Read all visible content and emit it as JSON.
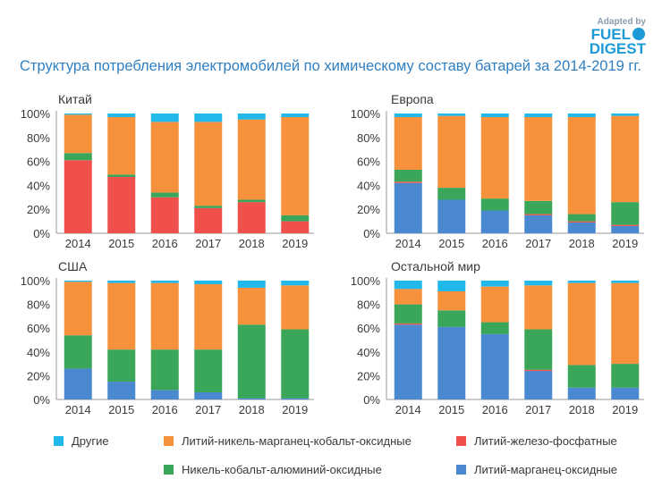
{
  "logo": {
    "line1": "Adapted by",
    "line2": "FUEL",
    "line3": "DIGEST"
  },
  "title": "Структура потребления электромобилей по химическому составу батарей за 2014-2019 гг.",
  "colors": {
    "other": "#22b8ea",
    "nmc": "#f7913c",
    "lfp": "#f0504c",
    "nca": "#3aa65a",
    "lmo": "#4a89cf"
  },
  "legend": [
    {
      "key": "other",
      "label": "Другие"
    },
    {
      "key": "nmc",
      "label": "Литий-никель-марганец-кобальт-оксидные"
    },
    {
      "key": "lfp",
      "label": "Литий-железо-фосфатные"
    },
    {
      "key": "nca",
      "label": "Никель-кобальт-алюминий-оксидные"
    },
    {
      "key": "lmo",
      "label": "Литий-марганец-оксидные"
    }
  ],
  "chart_data": [
    {
      "type": "bar",
      "stacked": true,
      "title": "Китай",
      "categories": [
        "2014",
        "2015",
        "2016",
        "2017",
        "2018",
        "2019"
      ],
      "ylim": [
        0,
        100
      ],
      "yticks": [
        "0%",
        "20%",
        "40%",
        "60%",
        "80%",
        "100%"
      ],
      "series": [
        {
          "key": "lmo",
          "name": "Литий-марганец-оксидные",
          "values": [
            0,
            0,
            0,
            0,
            0,
            0
          ]
        },
        {
          "key": "lfp",
          "name": "Литий-железо-фосфатные",
          "values": [
            61,
            47,
            30,
            21,
            26,
            10
          ]
        },
        {
          "key": "nca",
          "name": "Никель-кобальт-алюминий-оксидные",
          "values": [
            6,
            2,
            4,
            2,
            2,
            5
          ]
        },
        {
          "key": "nmc",
          "name": "Литий-никель-марганец-кобальт-оксидные",
          "values": [
            32,
            48,
            59,
            70,
            67,
            82
          ]
        },
        {
          "key": "other",
          "name": "Другие",
          "values": [
            1,
            3,
            7,
            7,
            5,
            3
          ]
        }
      ]
    },
    {
      "type": "bar",
      "stacked": true,
      "title": "Европа",
      "categories": [
        "2014",
        "2015",
        "2016",
        "2017",
        "2018",
        "2019"
      ],
      "ylim": [
        0,
        100
      ],
      "yticks": [
        "0%",
        "20%",
        "40%",
        "60%",
        "80%",
        "100%"
      ],
      "series": [
        {
          "key": "lmo",
          "name": "Литий-марганец-оксидные",
          "values": [
            42,
            28,
            19,
            15,
            9,
            6
          ]
        },
        {
          "key": "lfp",
          "name": "Литий-железо-фосфатные",
          "values": [
            1,
            0,
            0,
            1,
            1,
            1
          ]
        },
        {
          "key": "nca",
          "name": "Никель-кобальт-алюминий-оксидные",
          "values": [
            10,
            10,
            10,
            11,
            6,
            19
          ]
        },
        {
          "key": "nmc",
          "name": "Литий-никель-марганец-кобальт-оксидные",
          "values": [
            44,
            60,
            68,
            70,
            81,
            72
          ]
        },
        {
          "key": "other",
          "name": "Другие",
          "values": [
            3,
            2,
            3,
            3,
            3,
            2
          ]
        }
      ]
    },
    {
      "type": "bar",
      "stacked": true,
      "title": "США",
      "categories": [
        "2014",
        "2015",
        "2016",
        "2017",
        "2018",
        "2019"
      ],
      "ylim": [
        0,
        100
      ],
      "yticks": [
        "0%",
        "20%",
        "40%",
        "60%",
        "80%",
        "100%"
      ],
      "series": [
        {
          "key": "lmo",
          "name": "Литий-марганец-оксидные",
          "values": [
            26,
            15,
            8,
            6,
            1,
            1
          ]
        },
        {
          "key": "lfp",
          "name": "Литий-железо-фосфатные",
          "values": [
            0,
            0,
            0,
            0,
            0,
            0
          ]
        },
        {
          "key": "nca",
          "name": "Никель-кобальт-алюминий-оксидные",
          "values": [
            28,
            27,
            34,
            36,
            62,
            58
          ]
        },
        {
          "key": "nmc",
          "name": "Литий-никель-марганец-кобальт-оксидные",
          "values": [
            45,
            56,
            56,
            55,
            31,
            37
          ]
        },
        {
          "key": "other",
          "name": "Другие",
          "values": [
            1,
            2,
            2,
            3,
            6,
            4
          ]
        }
      ]
    },
    {
      "type": "bar",
      "stacked": true,
      "title": "Остальной мир",
      "categories": [
        "2014",
        "2015",
        "2016",
        "2017",
        "2018",
        "2019"
      ],
      "ylim": [
        0,
        100
      ],
      "yticks": [
        "0%",
        "20%",
        "40%",
        "60%",
        "80%",
        "100%"
      ],
      "series": [
        {
          "key": "lmo",
          "name": "Литий-марганец-оксидные",
          "values": [
            63,
            61,
            55,
            24,
            10,
            10
          ]
        },
        {
          "key": "lfp",
          "name": "Литий-железо-фосфатные",
          "values": [
            1,
            0,
            0,
            1,
            0,
            0
          ]
        },
        {
          "key": "nca",
          "name": "Никель-кобальт-алюминий-оксидные",
          "values": [
            16,
            14,
            10,
            34,
            19,
            20
          ]
        },
        {
          "key": "nmc",
          "name": "Литий-никель-марганец-кобальт-оксидные",
          "values": [
            13,
            16,
            30,
            37,
            69,
            68
          ]
        },
        {
          "key": "other",
          "name": "Другие",
          "values": [
            7,
            9,
            5,
            4,
            2,
            2
          ]
        }
      ]
    }
  ]
}
